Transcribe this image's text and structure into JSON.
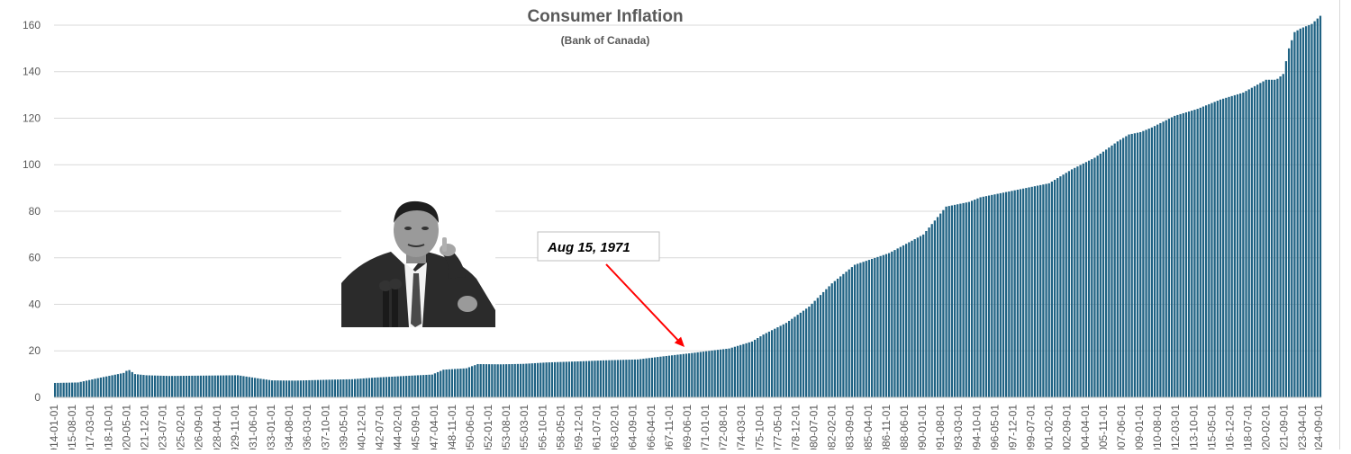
{
  "chart_data": {
    "type": "bar",
    "title": "Consumer Inflation",
    "subtitle": "(Bank of Canada)",
    "xlabel": "",
    "ylabel": "",
    "ylim": [
      0,
      165
    ],
    "yticks": [
      0,
      20,
      40,
      60,
      80,
      100,
      120,
      140,
      160
    ],
    "grid": true,
    "bar_color": "#1f6283",
    "grid_color": "#d9d9d9",
    "annotation": {
      "text": "Aug 15, 1971",
      "points_to": "1971-08-01",
      "arrow_color": "#ff0000"
    },
    "image_note": "photo-of-man-pointing",
    "x_tick_labels": [
      "1914-01-01",
      "1915-08-01",
      "1917-03-01",
      "1918-10-01",
      "1920-05-01",
      "1921-12-01",
      "1923-07-01",
      "1925-02-01",
      "1926-09-01",
      "1928-04-01",
      "1929-11-01",
      "1931-06-01",
      "1933-01-01",
      "1934-08-01",
      "1936-03-01",
      "1937-10-01",
      "1939-05-01",
      "1940-12-01",
      "1942-07-01",
      "1944-02-01",
      "1945-09-01",
      "1947-04-01",
      "1948-11-01",
      "1950-06-01",
      "1952-01-01",
      "1953-08-01",
      "1955-03-01",
      "1956-10-01",
      "1958-05-01",
      "1959-12-01",
      "1961-07-01",
      "1963-02-01",
      "1964-09-01",
      "1966-04-01",
      "1967-11-01",
      "1969-06-01",
      "1971-01-01",
      "1972-08-01",
      "1974-03-01",
      "1975-10-01",
      "1977-05-01",
      "1978-12-01",
      "1980-07-01",
      "1982-02-01",
      "1983-09-01",
      "1985-04-01",
      "1986-11-01",
      "1988-06-01",
      "1990-01-01",
      "1991-08-01",
      "1993-03-01",
      "1994-10-01",
      "1996-05-01",
      "1997-12-01",
      "1999-07-01",
      "2001-02-01",
      "2002-09-01",
      "2004-04-01",
      "2005-11-01",
      "2007-06-01",
      "2009-01-01",
      "2010-08-01",
      "2012-03-01",
      "2013-10-01",
      "2015-05-01",
      "2016-12-01",
      "2018-07-01",
      "2020-02-01",
      "2021-09-01",
      "2023-04-01",
      "2024-09-01"
    ],
    "x": [
      1914.0,
      1916.0,
      1918.0,
      1920.0,
      1920.42,
      1921.0,
      1922.0,
      1924.0,
      1926.0,
      1928.0,
      1930.0,
      1932.0,
      1933.0,
      1935.0,
      1938.0,
      1940.0,
      1942.0,
      1945.0,
      1947.0,
      1948.0,
      1950.0,
      1951.0,
      1953.0,
      1955.0,
      1957.0,
      1960.0,
      1962.0,
      1965.0,
      1967.0,
      1970.0,
      1971.6,
      1973.0,
      1974.0,
      1975.0,
      1976.0,
      1978.0,
      1980.0,
      1982.0,
      1984.0,
      1987.0,
      1990.0,
      1991.0,
      1992.0,
      1994.0,
      1995.0,
      1997.0,
      1999.0,
      2001.0,
      2003.0,
      2005.0,
      2007.0,
      2008.0,
      2009.0,
      2010.0,
      2012.0,
      2014.0,
      2016.0,
      2018.0,
      2020.0,
      2020.9,
      2021.5,
      2022.0,
      2022.5,
      2023.0,
      2024.0,
      2024.75
    ],
    "values": [
      6.2,
      6.4,
      8.5,
      10.5,
      12.0,
      10.0,
      9.5,
      9.2,
      9.3,
      9.4,
      9.5,
      8.0,
      7.3,
      7.2,
      7.6,
      7.8,
      8.5,
      9.3,
      9.8,
      11.9,
      12.5,
      14.3,
      14.2,
      14.4,
      15.0,
      15.5,
      15.9,
      16.3,
      17.5,
      19.2,
      20.2,
      21.0,
      22.5,
      24.0,
      27.0,
      32.0,
      39.0,
      49.0,
      57.0,
      62.0,
      70.0,
      76.0,
      82.0,
      84.0,
      86.0,
      88.0,
      90.0,
      92.0,
      98.0,
      103.0,
      110.0,
      113.0,
      114.0,
      116.0,
      121.0,
      124.0,
      128.0,
      131.0,
      136.5,
      136.5,
      139.0,
      150.0,
      157.0,
      158.5,
      160.5,
      164.0
    ]
  }
}
